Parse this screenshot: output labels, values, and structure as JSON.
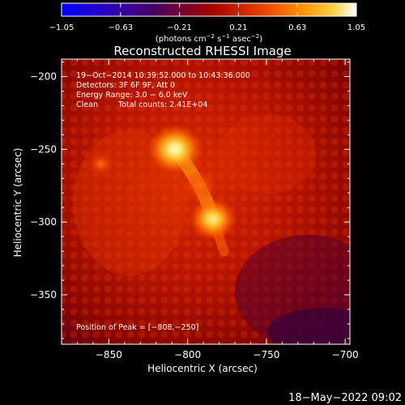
{
  "chart_data": {
    "type": "heatmap",
    "title": "Reconstructed RHESSI Image",
    "xlabel": "Heliocentric X (arcsec)",
    "ylabel": "Heliocentric Y (arcsec)",
    "xlim": [
      -880,
      -697
    ],
    "ylim": [
      -384,
      -188
    ],
    "x_ticks": [
      -850,
      -800,
      -750,
      -700
    ],
    "y_ticks": [
      -200,
      -250,
      -300,
      -350
    ],
    "x_tick_labels": [
      "−850",
      "−800",
      "−750",
      "−700"
    ],
    "y_tick_labels": [
      "−200",
      "−250",
      "−300",
      "−350"
    ],
    "colorbar": {
      "min": -1.05,
      "max": 1.05,
      "ticks": [
        -1.05,
        -0.63,
        -0.21,
        0.21,
        0.63,
        1.05
      ],
      "tick_labels": [
        "−1.05",
        "−0.63",
        "−0.21",
        "0.21",
        "0.63",
        "1.05"
      ],
      "units_prefix": "(photons cm",
      "units_exp1": "−2",
      "units_mid": " s",
      "units_exp2": "−1",
      "units_mid2": " asec",
      "units_exp3": "−2",
      "units_suffix": ")"
    },
    "sources": [
      {
        "x": -808,
        "y": -250,
        "intensity": 1.05
      },
      {
        "x": -784,
        "y": -298,
        "intensity": 0.85
      },
      {
        "x": -792,
        "y": -275,
        "intensity": 0.55
      },
      {
        "x": -855,
        "y": -260,
        "intensity": 0.35
      }
    ],
    "annotations": {
      "line1": "19−Oct−2014 10:39:52.000 to 10:43:36.000",
      "line2": "Detectors: 3F 6F 9F, Att 0",
      "line3": "Energy Range: 3.0 − 6.0 keV",
      "line4_a": "Clean",
      "line4_b": "Total counts: 2.41E+04",
      "peak": "Position of Peak = [−808,−250]"
    },
    "timestamp": "18−May−2022 09:02"
  }
}
